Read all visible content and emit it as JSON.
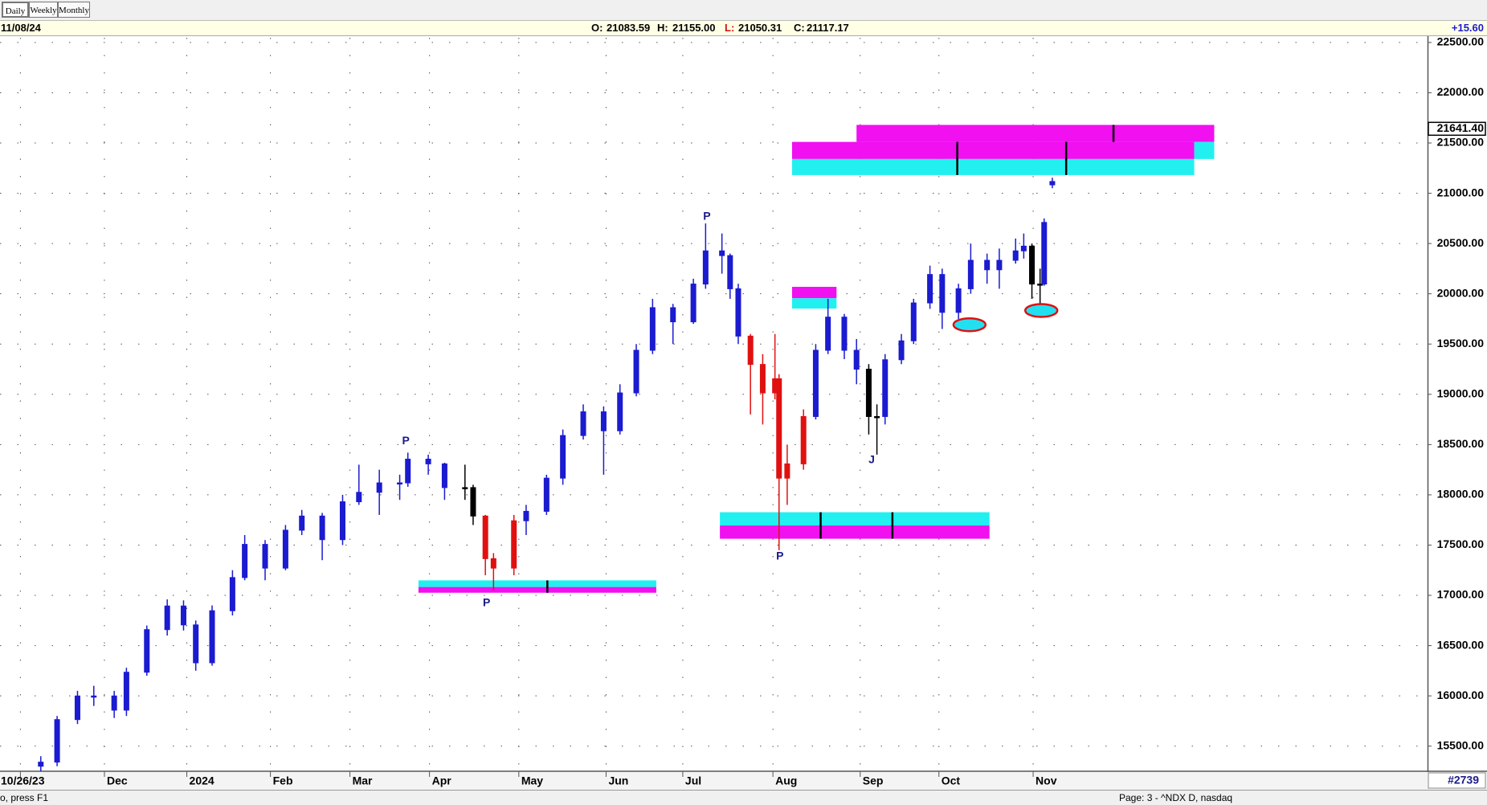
{
  "toolbar": {
    "buttons": [
      "Daily",
      "Weekly",
      "Monthly"
    ]
  },
  "info_bar": {
    "date": "11/08/24",
    "ohlc": [
      {
        "label": "O:",
        "value": "21083.59"
      },
      {
        "label": "H:",
        "value": "21155.00"
      },
      {
        "label": "L:",
        "value": "21050.31"
      },
      {
        "label": "C:",
        "value": "21117.17"
      }
    ],
    "change": "+15.60"
  },
  "chart_data": {
    "type": "candlestick",
    "x": [
      10,
      14,
      19,
      23,
      28,
      31,
      36,
      41,
      45,
      48,
      52,
      57,
      60,
      65,
      70,
      74,
      79,
      84,
      88,
      93,
      98,
      100,
      105,
      109,
      114,
      116,
      119,
      121,
      126,
      129,
      134,
      138,
      143,
      148,
      152,
      156,
      160,
      165,
      170,
      173,
      177,
      179,
      181,
      184,
      187,
      190,
      191,
      193,
      197,
      200,
      203,
      207,
      210,
      213,
      215,
      217,
      221,
      224,
      228,
      231,
      235,
      238,
      242,
      245,
      249,
      251,
      253,
      255,
      256,
      258
    ],
    "open": [
      15300,
      15341,
      15764,
      15999,
      15999,
      15858,
      16235,
      16659,
      16894,
      16706,
      16329,
      16847,
      17177,
      17507,
      17271,
      17648,
      17789,
      17554,
      17931,
      18025,
      18119,
      18119,
      18355,
      18308,
      18072,
      18072,
      17789,
      17365,
      17271,
      17742,
      17836,
      18166,
      18590,
      18826,
      18637,
      19014,
      19438,
      19862,
      19721,
      20097,
      20427,
      20380,
      20050,
      19579,
      19297,
      19014,
      19155,
      18166,
      18308,
      18779,
      19438,
      19768,
      19438,
      19250,
      18779,
      18779,
      19344,
      19532,
      19909,
      20192,
      19815,
      20050,
      20333,
      20239,
      20333,
      20427,
      20474,
      20097,
      20097,
      21083.59
    ],
    "high": [
      15400,
      15800,
      16050,
      16100,
      16050,
      16280,
      16700,
      16960,
      16950,
      16750,
      16900,
      17250,
      17600,
      17550,
      17700,
      17850,
      17820,
      18000,
      18300,
      18250,
      18200,
      18420,
      18400,
      18320,
      18300,
      18100,
      17800,
      17420,
      17800,
      17900,
      18200,
      18650,
      18900,
      18880,
      19100,
      19500,
      19950,
      19900,
      20150,
      20700,
      20600,
      20400,
      20100,
      19600,
      19400,
      19600,
      19200,
      18500,
      18850,
      19500,
      19950,
      19800,
      19550,
      19300,
      18900,
      19400,
      19600,
      19950,
      20280,
      20250,
      20100,
      20500,
      20400,
      20450,
      20550,
      20600,
      20500,
      20250,
      20750,
      21155
    ],
    "low": [
      15250,
      15300,
      15720,
      15900,
      15780,
      15800,
      16200,
      16600,
      16650,
      16250,
      16300,
      16800,
      17150,
      17150,
      17250,
      17600,
      17350,
      17500,
      17900,
      17800,
      17950,
      18080,
      18200,
      17950,
      17950,
      17700,
      17200,
      17050,
      17200,
      17600,
      17800,
      18100,
      18550,
      18200,
      18600,
      18980,
      19400,
      19500,
      19700,
      20050,
      20200,
      19950,
      19500,
      18800,
      18700,
      18950,
      17450,
      17900,
      18250,
      18750,
      19400,
      19350,
      19100,
      18600,
      18400,
      18700,
      19300,
      19500,
      19850,
      19650,
      19750,
      20000,
      20100,
      20050,
      20300,
      20350,
      19950,
      19900,
      20080,
      21050.31
    ],
    "close": [
      15341,
      15764,
      15999,
      15999,
      15858,
      16235,
      16659,
      16894,
      16706,
      16329,
      16847,
      17177,
      17507,
      17271,
      17648,
      17789,
      17554,
      17931,
      18025,
      18119,
      18119,
      18355,
      18308,
      18072,
      18072,
      17789,
      17365,
      17271,
      17742,
      17836,
      18166,
      18590,
      18826,
      18637,
      19014,
      19438,
      19862,
      19721,
      20097,
      20427,
      20380,
      20050,
      19579,
      19297,
      19014,
      19155,
      18166,
      18308,
      18779,
      19438,
      19768,
      19438,
      19250,
      18779,
      18779,
      19344,
      19532,
      19909,
      20192,
      19815,
      20050,
      20333,
      20239,
      20333,
      20427,
      20474,
      20097,
      20097,
      20710,
      21117.17
    ],
    "colors": [
      "#1b1bd0",
      "#1b1bd0",
      "#1b1bd0",
      "#1b1bd0",
      "#1b1bd0",
      "#1b1bd0",
      "#1b1bd0",
      "#1b1bd0",
      "#1b1bd0",
      "#1b1bd0",
      "#1b1bd0",
      "#1b1bd0",
      "#1b1bd0",
      "#1b1bd0",
      "#1b1bd0",
      "#1b1bd0",
      "#1b1bd0",
      "#1b1bd0",
      "#1b1bd0",
      "#1b1bd0",
      "#1b1bd0",
      "#1b1bd0",
      "#1b1bd0",
      "#1b1bd0",
      "#000000",
      "#000000",
      "#e01010",
      "#e01010",
      "#e01010",
      "#1b1bd0",
      "#1b1bd0",
      "#1b1bd0",
      "#1b1bd0",
      "#1b1bd0",
      "#1b1bd0",
      "#1b1bd0",
      "#1b1bd0",
      "#1b1bd0",
      "#1b1bd0",
      "#1b1bd0",
      "#1b1bd0",
      "#1b1bd0",
      "#1b1bd0",
      "#e01010",
      "#e01010",
      "#e01010",
      "#e01010",
      "#e01010",
      "#e01010",
      "#1b1bd0",
      "#1b1bd0",
      "#1b1bd0",
      "#1b1bd0",
      "#000000",
      "#000000",
      "#1b1bd0",
      "#1b1bd0",
      "#1b1bd0",
      "#1b1bd0",
      "#1b1bd0",
      "#1b1bd0",
      "#1b1bd0",
      "#1b1bd0",
      "#1b1bd0",
      "#1b1bd0",
      "#1b1bd0",
      "#000000",
      "#000000",
      "#1b1bd0",
      "#1b1bd0"
    ],
    "xlim": [
      0,
      350
    ],
    "ylim": [
      15274,
      22547
    ],
    "xticks": [
      {
        "value": 5,
        "label": "10/26/23"
      },
      {
        "value": 25.6,
        "label": "Dec"
      },
      {
        "value": 45.8,
        "label": "2024"
      },
      {
        "value": 66.3,
        "label": "Feb"
      },
      {
        "value": 85.8,
        "label": "Mar"
      },
      {
        "value": 105.3,
        "label": "Apr"
      },
      {
        "value": 127.2,
        "label": "May"
      },
      {
        "value": 148.6,
        "label": "Jun"
      },
      {
        "value": 167.4,
        "label": "Jul"
      },
      {
        "value": 189.5,
        "label": "Aug"
      },
      {
        "value": 210.9,
        "label": "Sep"
      },
      {
        "value": 230.2,
        "label": "Oct"
      },
      {
        "value": 253.3,
        "label": "Nov"
      }
    ],
    "yticks": [
      {
        "value": 15500,
        "label": "15500.00"
      },
      {
        "value": 16000,
        "label": "16000.00"
      },
      {
        "value": 16500,
        "label": "16500.00"
      },
      {
        "value": 17000,
        "label": "17000.00"
      },
      {
        "value": 17500,
        "label": "17500.00"
      },
      {
        "value": 18000,
        "label": "18000.00"
      },
      {
        "value": 18500,
        "label": "18500.00"
      },
      {
        "value": 19000,
        "label": "19000.00"
      },
      {
        "value": 19500,
        "label": "19500.00"
      },
      {
        "value": 20000,
        "label": "20000.00"
      },
      {
        "value": 20500,
        "label": "20500.00"
      },
      {
        "value": 21000,
        "label": "21000.00"
      },
      {
        "value": 21500,
        "label": "21500.00"
      },
      {
        "value": 22000,
        "label": "22000.00"
      },
      {
        "value": 22500,
        "label": "22500.00"
      }
    ],
    "grid": true,
    "last_price": {
      "value": 21641.4,
      "label": "21641.40"
    },
    "zones": [
      {
        "x": [
          102.6,
          160.9
        ],
        "y": [
          17083,
          17149
        ],
        "color": "#22f0f0"
      },
      {
        "x": [
          102.6,
          160.9
        ],
        "y": [
          17026,
          17083
        ],
        "color": "#f010f0"
      },
      {
        "x": [
          176.5,
          242.6
        ],
        "y": [
          17695,
          17827
        ],
        "color": "#22f0f0"
      },
      {
        "x": [
          176.5,
          242.6
        ],
        "y": [
          17563,
          17695
        ],
        "color": "#f010f0"
      },
      {
        "x": [
          210,
          297.7
        ],
        "y": [
          21511,
          21680
        ],
        "color": "#f010f0"
      },
      {
        "x": [
          194.2,
          292.8
        ],
        "y": [
          21341,
          21511
        ],
        "color": "#f010f0"
      },
      {
        "x": [
          194.2,
          292.8
        ],
        "y": [
          21181,
          21341
        ],
        "color": "#22f0f0"
      },
      {
        "x": [
          292.8,
          297.7
        ],
        "y": [
          21341,
          21511
        ],
        "color": "#22f0f0"
      },
      {
        "x": [
          194.2,
          205.1
        ],
        "y": [
          19956,
          20069
        ],
        "color": "#f010f0"
      },
      {
        "x": [
          194.2,
          205.1
        ],
        "y": [
          19853,
          19956
        ],
        "color": "#22f0f0"
      }
    ],
    "zone_ticks": [
      {
        "x": 134.2,
        "y": [
          17026,
          17149
        ]
      },
      {
        "x": 201.2,
        "y": [
          17563,
          17827
        ]
      },
      {
        "x": 218.8,
        "y": [
          17563,
          17827
        ]
      },
      {
        "x": 234.7,
        "y": [
          21181,
          21511
        ]
      },
      {
        "x": 261.4,
        "y": [
          21181,
          21511
        ]
      },
      {
        "x": 273,
        "y": [
          21511,
          21680
        ]
      }
    ],
    "ovals": [
      {
        "x": 237.7,
        "y": 19692
      },
      {
        "x": 255.3,
        "y": 19834
      }
    ],
    "annotations": [
      {
        "text": "P",
        "x": 99.5,
        "y": 18534
      },
      {
        "text": "P",
        "x": 119.3,
        "y": 16922
      },
      {
        "text": "P",
        "x": 173.3,
        "y": 20766
      },
      {
        "text": "P",
        "x": 191.2,
        "y": 17384
      },
      {
        "text": "J",
        "x": 213.7,
        "y": 18345
      }
    ]
  },
  "status_bar": {
    "help": "o, press F1",
    "page": "Page: 3 - ^NDX D, nasdaq",
    "record": "#2739"
  }
}
